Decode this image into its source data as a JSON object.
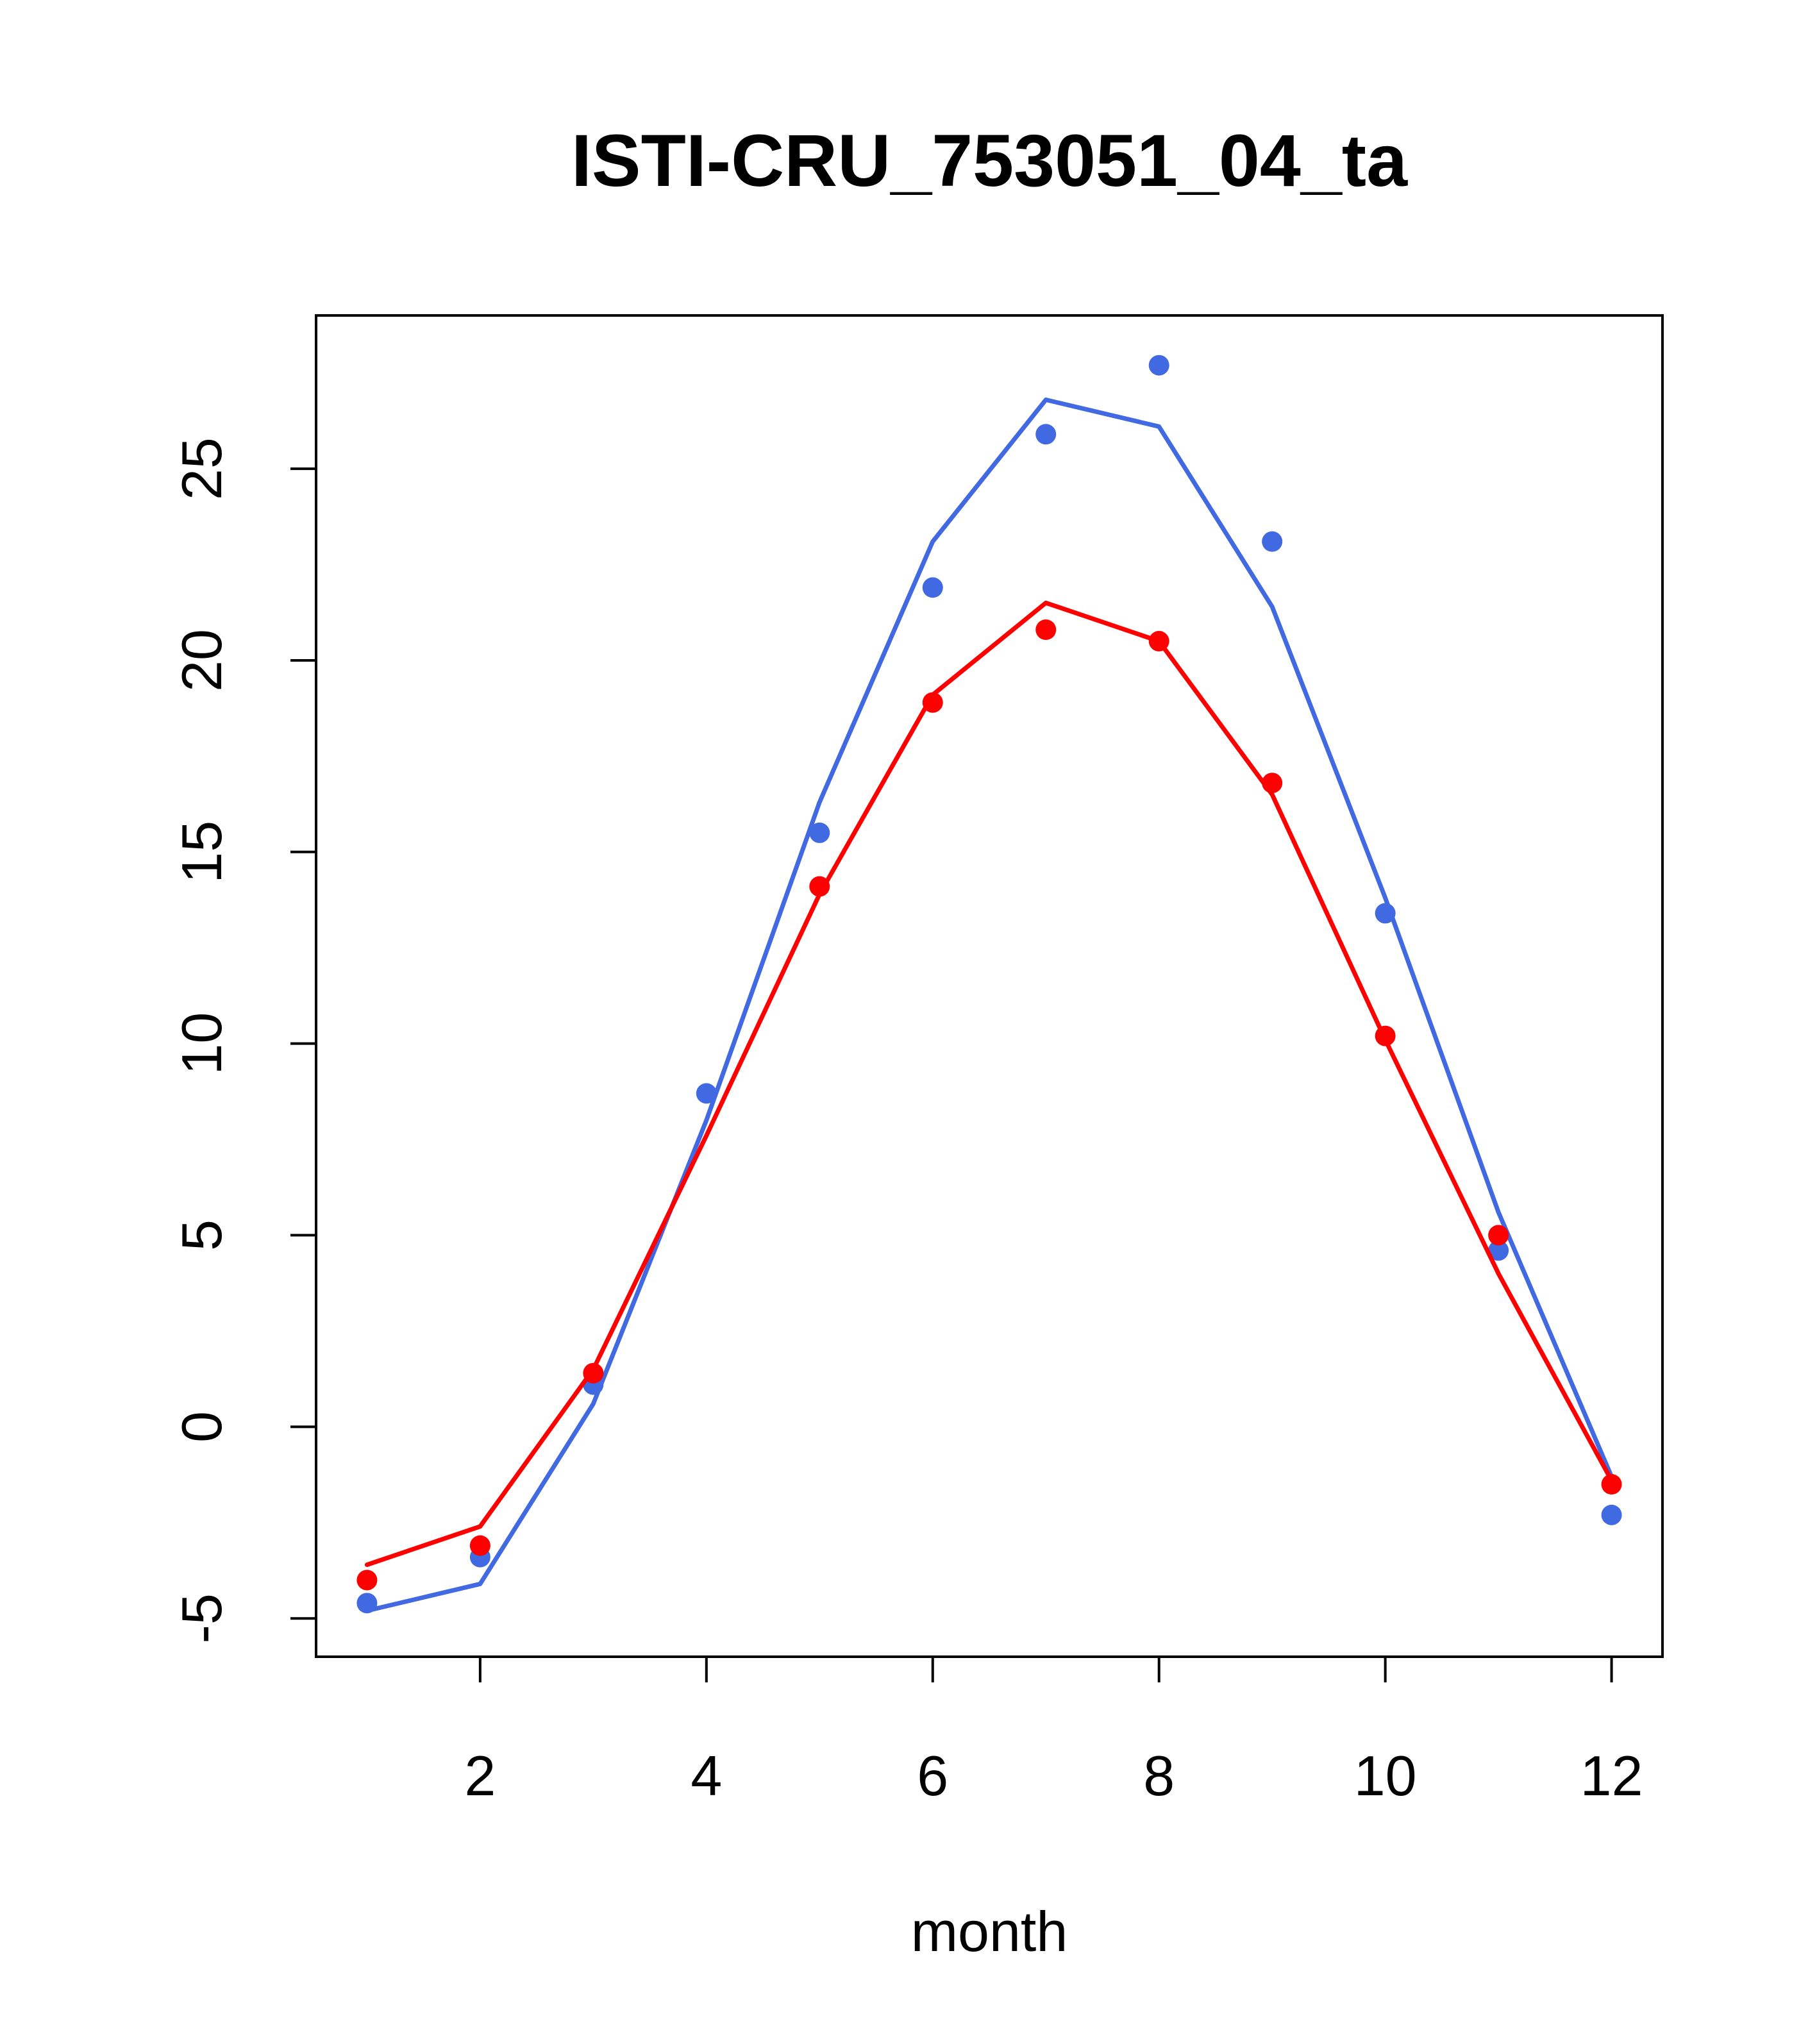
{
  "chart_data": {
    "type": "line",
    "title": "ISTI-CRU_753051_04_ta",
    "xlabel": "month",
    "ylabel": "",
    "xlim": [
      0.55,
      12.45
    ],
    "ylim": [
      -6.0,
      29.0
    ],
    "x_ticks": [
      2,
      4,
      6,
      8,
      10,
      12
    ],
    "y_ticks": [
      -5,
      0,
      5,
      10,
      15,
      20,
      25
    ],
    "grid": false,
    "legend": "none",
    "series": [
      {
        "color": "#4169e1",
        "x": [
          1,
          2,
          3,
          4,
          5,
          6,
          7,
          8,
          9,
          10,
          11,
          12
        ],
        "points": [
          -4.6,
          -3.4,
          1.1,
          8.7,
          15.5,
          21.9,
          25.9,
          27.7,
          23.1,
          13.4,
          4.6,
          -2.3
        ],
        "line": [
          -4.8,
          -4.1,
          0.6,
          8.0,
          16.3,
          23.1,
          26.8,
          26.1,
          21.4,
          13.8,
          5.6,
          -1.3
        ]
      },
      {
        "color": "#ff0000",
        "x": [
          1,
          2,
          3,
          4,
          5,
          6,
          7,
          8,
          9,
          10,
          11,
          12
        ],
        "points": [
          -4.0,
          -3.1,
          1.4,
          null,
          14.1,
          18.9,
          20.8,
          20.5,
          16.8,
          10.2,
          5.0,
          -1.5
        ],
        "line": [
          -3.6,
          -2.6,
          1.5,
          7.6,
          13.9,
          19.1,
          21.5,
          20.5,
          16.5,
          10.1,
          4.0,
          -1.4
        ]
      }
    ]
  }
}
